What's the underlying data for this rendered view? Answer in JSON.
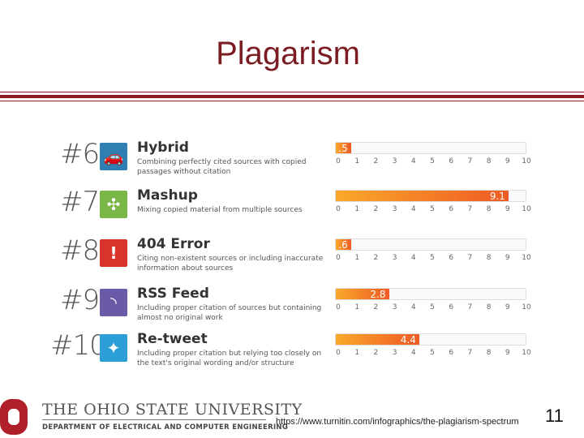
{
  "title": "Plagarism",
  "items": [
    {
      "rank": "#6",
      "name": "Hybrid",
      "desc": "Combining perfectly cited sources with copied passages without citation",
      "value": 0.5,
      "value_label": ".5",
      "icon": "car-icon",
      "icon_color": "#2f7fb3"
    },
    {
      "rank": "#7",
      "name": "Mashup",
      "desc": "Mixing copied material from multiple sources",
      "value": 9.1,
      "value_label": "9.1",
      "icon": "mashup-icon",
      "icon_color": "#7ab648"
    },
    {
      "rank": "#8",
      "name": "404 Error",
      "desc": "Citing non-existent sources or including inaccurate information about sources",
      "value": 0.6,
      "value_label": ".6",
      "icon": "warning-icon",
      "icon_color": "#d9342b"
    },
    {
      "rank": "#9",
      "name": "RSS Feed",
      "desc": "Including proper citation of sources but containing almost no original work",
      "value": 2.8,
      "value_label": "2.8",
      "icon": "rss-icon",
      "icon_color": "#6b5aa7"
    },
    {
      "rank": "#10",
      "name": "Re-tweet",
      "desc": "Including proper citation but relying too closely on the text's original wording and/or structure",
      "value": 4.4,
      "value_label": "4.4",
      "icon": "twitter-icon",
      "icon_color": "#2c9fd9"
    }
  ],
  "scale": {
    "min": 0,
    "max": 10,
    "ticks": [
      "0",
      "1",
      "2",
      "3",
      "4",
      "5",
      "6",
      "7",
      "8",
      "9",
      "10"
    ]
  },
  "footer": {
    "university": "THE OHIO STATE UNIVERSITY",
    "department": "DEPARTMENT OF ELECTRICAL AND COMPUTER ENGINEERING",
    "url": "https://www.turnitin.com/infographics/the-plagiarism-spectrum",
    "page_number": "11"
  }
}
